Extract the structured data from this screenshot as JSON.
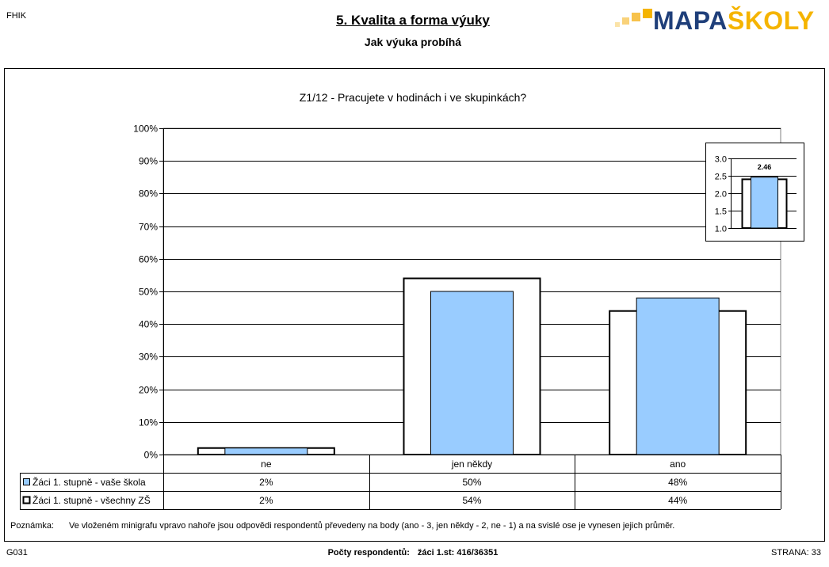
{
  "header": {
    "corner_code": "FHIK",
    "title": "5. Kvalita a forma výuky",
    "subtitle": "Jak výuka probíhá",
    "logo_text_1": "MAPA",
    "logo_text_2": "ŠKOLY",
    "logo_color_1": "#1f3f7a",
    "logo_color_2": "#f5b400"
  },
  "chart_data": [
    {
      "type": "bar",
      "title": "Z1/12 - Pracujete v hodinách i ve skupinkách?",
      "categories": [
        "ne",
        "jen někdy",
        "ano"
      ],
      "series": [
        {
          "name": "Žáci 1. stupně - vaše škola",
          "values": [
            2,
            50,
            48
          ],
          "labels": [
            "2%",
            "50%",
            "48%"
          ],
          "color": "#99ccff"
        },
        {
          "name": "Žáci 1. stupně - všechny ZŠ",
          "values": [
            2,
            54,
            44
          ],
          "labels": [
            "2%",
            "54%",
            "44%"
          ],
          "color": "#ffffff"
        }
      ],
      "ylim": [
        0,
        100
      ],
      "yticks": [
        "0%",
        "10%",
        "20%",
        "30%",
        "40%",
        "50%",
        "60%",
        "70%",
        "80%",
        "90%",
        "100%"
      ],
      "grid": true,
      "legend": "data-table-below"
    },
    {
      "type": "bar",
      "title": "",
      "categories": [
        ""
      ],
      "series": [
        {
          "name": "Žáci 1. stupně - vaše škola",
          "values": [
            2.46
          ],
          "color": "#99ccff"
        },
        {
          "name": "Žáci 1. stupně - všechny ZŠ",
          "values": [
            2.4
          ],
          "color": "#ffffff"
        }
      ],
      "data_label": "2.46",
      "ylim": [
        1.0,
        3.0
      ],
      "yticks": [
        "1.0",
        "1.5",
        "2.0",
        "2.5",
        "3.0"
      ],
      "grid": true
    }
  ],
  "note": {
    "label": "Poznámka:",
    "text": "Ve vloženém minigrafu vpravo nahoře jsou odpovědi respondentů převedeny na body (ano - 3, jen někdy - 2, ne - 1) a na svislé ose je vynesen jejich průměr."
  },
  "footer": {
    "left": "G031",
    "center_label": "Počty respondentů:",
    "center_value": "žáci 1.st: 416/36351",
    "right": "STRANA: 33"
  }
}
